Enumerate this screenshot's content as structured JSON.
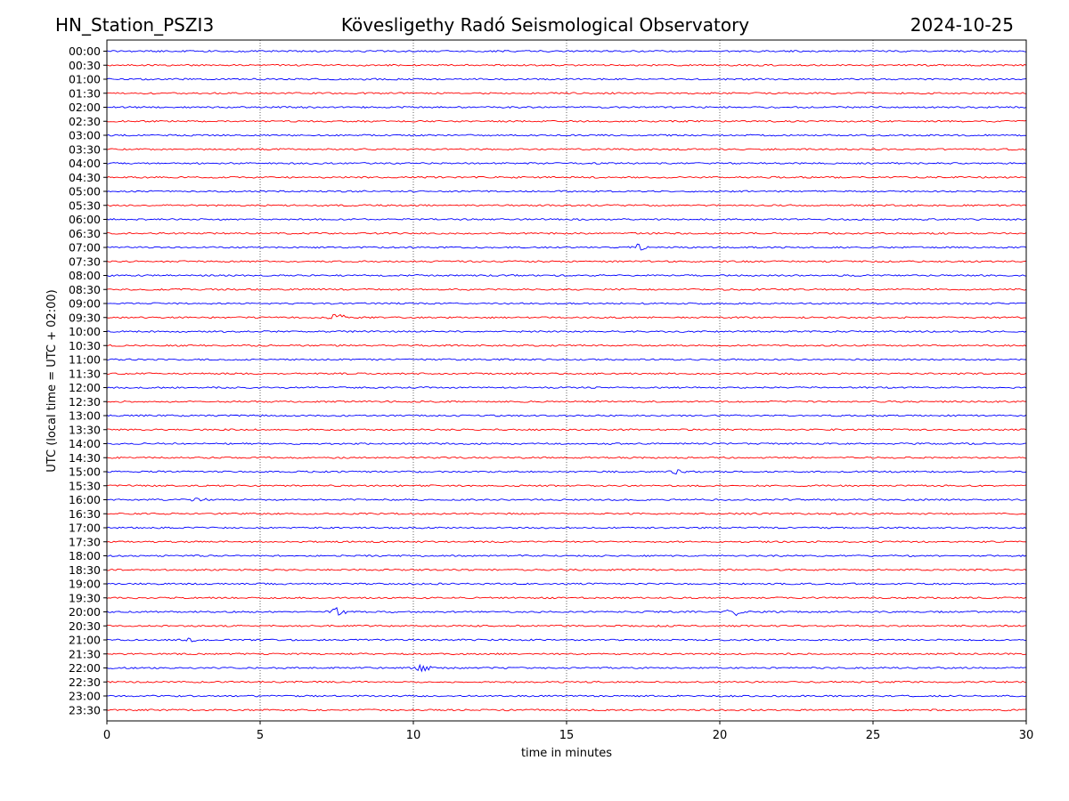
{
  "header": {
    "station": "HN_Station_PSZI3",
    "observatory": "Kövesligethy Radó Seismological Observatory",
    "date": "2024-10-25"
  },
  "chart_data": {
    "type": "line",
    "title": "Kövesligethy Radó Seismological Observatory",
    "xlabel": "time in minutes",
    "ylabel": "UTC (local time = UTC + 02:00)",
    "xlim": [
      0,
      30
    ],
    "x_ticks": [
      0,
      5,
      10,
      15,
      20,
      25,
      30
    ],
    "grid": "vertical dotted lines at 5-minute intervals",
    "row_labels": [
      "00:00",
      "00:30",
      "01:00",
      "01:30",
      "02:00",
      "02:30",
      "03:00",
      "03:30",
      "04:00",
      "04:30",
      "05:00",
      "05:30",
      "06:00",
      "06:30",
      "07:00",
      "07:30",
      "08:00",
      "08:30",
      "09:00",
      "09:30",
      "10:00",
      "10:30",
      "11:00",
      "11:30",
      "12:00",
      "12:30",
      "13:00",
      "13:30",
      "14:00",
      "14:30",
      "15:00",
      "15:30",
      "16:00",
      "16:30",
      "17:00",
      "17:30",
      "18:00",
      "18:30",
      "19:00",
      "19:30",
      "20:00",
      "20:30",
      "21:00",
      "21:30",
      "22:00",
      "22:30",
      "23:00",
      "23:30"
    ],
    "trace_colors": [
      "#0000ff",
      "#ff0000"
    ],
    "events": [
      {
        "row": "07:00",
        "minute": 17.3,
        "amplitude": 0.8
      },
      {
        "row": "09:30",
        "minute": 7.5,
        "amplitude": 1.0
      },
      {
        "row": "15:00",
        "minute": 18.6,
        "amplitude": 0.6
      },
      {
        "row": "16:00",
        "minute": 3.0,
        "amplitude": 0.5
      },
      {
        "row": "20:00",
        "minute": 7.5,
        "amplitude": 1.0
      },
      {
        "row": "20:00",
        "minute": 20.5,
        "amplitude": 0.9
      },
      {
        "row": "21:00",
        "minute": 2.6,
        "amplitude": 0.5
      },
      {
        "row": "22:00",
        "minute": 10.3,
        "amplitude": 0.9
      }
    ]
  }
}
